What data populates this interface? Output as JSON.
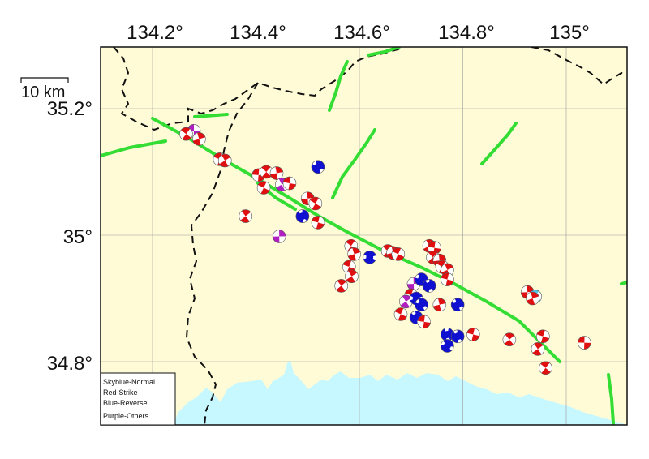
{
  "map": {
    "longitude_labels": [
      "134.2°",
      "134.4°",
      "134.6°",
      "134.8°",
      "135°"
    ],
    "latitude_labels": [
      "35.2°",
      "35°",
      "34.8°"
    ],
    "scale_bar": "10 km",
    "colors": {
      "land": "#fffbd6",
      "sea": "#c8f8ff",
      "fault": "#33dd33",
      "boundary": "#111111",
      "grid": "#9a9a9a",
      "strike": "#e01010",
      "reverse": "#1010d0",
      "normal": "#55c8e8",
      "others": "#b020c0"
    }
  },
  "legend": {
    "normal": "Skyblue-Normal",
    "strike": "Red-Strike",
    "reverse": "Blue-Reverse",
    "others": "Purple-Others"
  },
  "mechanisms": [
    {
      "type": "others",
      "lon": 134.28,
      "lat": 35.165
    },
    {
      "type": "strike",
      "lon": 134.265,
      "lat": 35.16
    },
    {
      "type": "strike",
      "lon": 134.29,
      "lat": 35.152
    },
    {
      "type": "strike",
      "lon": 134.33,
      "lat": 35.12
    },
    {
      "type": "strike",
      "lon": 134.34,
      "lat": 35.118
    },
    {
      "type": "strike",
      "lon": 134.405,
      "lat": 35.095
    },
    {
      "type": "strike",
      "lon": 134.42,
      "lat": 35.1
    },
    {
      "type": "strike",
      "lon": 134.44,
      "lat": 35.098
    },
    {
      "type": "strike",
      "lon": 134.415,
      "lat": 35.075
    },
    {
      "type": "others",
      "lon": 134.45,
      "lat": 35.08
    },
    {
      "type": "strike",
      "lon": 134.465,
      "lat": 35.082
    },
    {
      "type": "reverse",
      "lon": 134.52,
      "lat": 35.108
    },
    {
      "type": "strike",
      "lon": 134.5,
      "lat": 35.058
    },
    {
      "type": "strike",
      "lon": 134.515,
      "lat": 35.05
    },
    {
      "type": "reverse",
      "lon": 134.49,
      "lat": 35.03
    },
    {
      "type": "strike",
      "lon": 134.52,
      "lat": 35.02
    },
    {
      "type": "strike",
      "lon": 134.38,
      "lat": 35.03
    },
    {
      "type": "others",
      "lon": 134.445,
      "lat": 34.998
    },
    {
      "type": "strike",
      "lon": 134.584,
      "lat": 34.983
    },
    {
      "type": "strike",
      "lon": 134.59,
      "lat": 34.97
    },
    {
      "type": "strike",
      "lon": 134.58,
      "lat": 34.95
    },
    {
      "type": "strike",
      "lon": 134.585,
      "lat": 34.935
    },
    {
      "type": "reverse",
      "lon": 134.62,
      "lat": 34.965
    },
    {
      "type": "strike",
      "lon": 134.655,
      "lat": 34.975
    },
    {
      "type": "strike",
      "lon": 134.665,
      "lat": 34.972
    },
    {
      "type": "strike",
      "lon": 134.675,
      "lat": 34.97
    },
    {
      "type": "strike",
      "lon": 134.735,
      "lat": 34.983
    },
    {
      "type": "strike",
      "lon": 134.745,
      "lat": 34.98
    },
    {
      "type": "strike",
      "lon": 134.742,
      "lat": 34.965
    },
    {
      "type": "strike",
      "lon": 134.755,
      "lat": 34.96
    },
    {
      "type": "strike",
      "lon": 134.76,
      "lat": 34.95
    },
    {
      "type": "strike",
      "lon": 134.77,
      "lat": 34.945
    },
    {
      "type": "strike",
      "lon": 134.77,
      "lat": 34.93
    },
    {
      "type": "strike",
      "lon": 134.565,
      "lat": 34.92
    },
    {
      "type": "others",
      "lon": 134.705,
      "lat": 34.923
    },
    {
      "type": "reverse",
      "lon": 134.72,
      "lat": 34.93
    },
    {
      "type": "reverse",
      "lon": 134.735,
      "lat": 34.92
    },
    {
      "type": "strike",
      "lon": 134.7,
      "lat": 34.905
    },
    {
      "type": "others",
      "lon": 134.69,
      "lat": 34.895
    },
    {
      "type": "reverse",
      "lon": 134.71,
      "lat": 34.9
    },
    {
      "type": "reverse",
      "lon": 134.72,
      "lat": 34.89
    },
    {
      "type": "strike",
      "lon": 134.755,
      "lat": 34.89
    },
    {
      "type": "strike",
      "lon": 134.68,
      "lat": 34.875
    },
    {
      "type": "reverse",
      "lon": 134.71,
      "lat": 34.87
    },
    {
      "type": "strike",
      "lon": 134.725,
      "lat": 34.863
    },
    {
      "type": "reverse",
      "lon": 134.79,
      "lat": 34.89
    },
    {
      "type": "reverse",
      "lon": 134.77,
      "lat": 34.843
    },
    {
      "type": "reverse",
      "lon": 134.77,
      "lat": 34.825
    },
    {
      "type": "reverse",
      "lon": 134.79,
      "lat": 34.84
    },
    {
      "type": "strike",
      "lon": 134.82,
      "lat": 34.843
    },
    {
      "type": "strike",
      "lon": 134.89,
      "lat": 34.835
    },
    {
      "type": "strike",
      "lon": 134.925,
      "lat": 34.91
    },
    {
      "type": "normal",
      "lon": 134.94,
      "lat": 34.903
    },
    {
      "type": "strike",
      "lon": 134.935,
      "lat": 34.9
    },
    {
      "type": "strike",
      "lon": 134.955,
      "lat": 34.84
    },
    {
      "type": "strike",
      "lon": 134.945,
      "lat": 34.82
    },
    {
      "type": "strike",
      "lon": 135.035,
      "lat": 34.83
    },
    {
      "type": "strike",
      "lon": 134.96,
      "lat": 34.79
    }
  ]
}
